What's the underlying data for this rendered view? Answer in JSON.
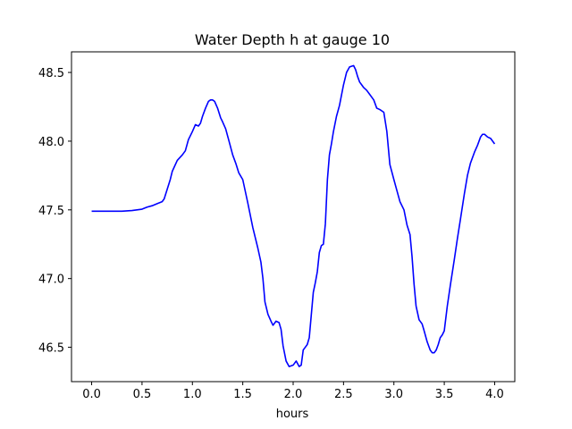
{
  "chart_data": {
    "type": "line",
    "title": "Water Depth h at gauge 10",
    "xlabel": "hours",
    "ylabel": "",
    "xlim": [
      -0.2,
      4.2
    ],
    "ylim": [
      46.25,
      48.65
    ],
    "xticks": [
      0.0,
      0.5,
      1.0,
      1.5,
      2.0,
      2.5,
      3.0,
      3.5,
      4.0
    ],
    "xtick_labels": [
      "0.0",
      "0.5",
      "1.0",
      "1.5",
      "2.0",
      "2.5",
      "3.0",
      "3.5",
      "4.0"
    ],
    "yticks": [
      46.5,
      47.0,
      47.5,
      48.0,
      48.5
    ],
    "ytick_labels": [
      "46.5",
      "47.0",
      "47.5",
      "48.0",
      "48.5"
    ],
    "grid": false,
    "series": [
      {
        "color": "#0000ff",
        "x": [
          0.0,
          0.1,
          0.2,
          0.3,
          0.4,
          0.5,
          0.55,
          0.6,
          0.65,
          0.7,
          0.72,
          0.75,
          0.78,
          0.8,
          0.85,
          0.9,
          0.93,
          0.96,
          1.0,
          1.03,
          1.06,
          1.08,
          1.1,
          1.13,
          1.16,
          1.18,
          1.2,
          1.22,
          1.25,
          1.28,
          1.3,
          1.33,
          1.36,
          1.4,
          1.43,
          1.46,
          1.5,
          1.55,
          1.6,
          1.65,
          1.68,
          1.7,
          1.72,
          1.75,
          1.78,
          1.8,
          1.83,
          1.86,
          1.88,
          1.9,
          1.93,
          1.96,
          2.0,
          2.03,
          2.06,
          2.08,
          2.1,
          2.12,
          2.14,
          2.16,
          2.2,
          2.22,
          2.24,
          2.26,
          2.28,
          2.3,
          2.32,
          2.34,
          2.36,
          2.38,
          2.4,
          2.43,
          2.46,
          2.5,
          2.53,
          2.56,
          2.6,
          2.62,
          2.64,
          2.66,
          2.68,
          2.7,
          2.73,
          2.76,
          2.8,
          2.83,
          2.86,
          2.9,
          2.93,
          2.96,
          3.0,
          3.03,
          3.06,
          3.1,
          3.13,
          3.16,
          3.18,
          3.2,
          3.22,
          3.25,
          3.28,
          3.3,
          3.33,
          3.36,
          3.38,
          3.4,
          3.42,
          3.44,
          3.46,
          3.48,
          3.5,
          3.53,
          3.56,
          3.6,
          3.63,
          3.66,
          3.7,
          3.73,
          3.76,
          3.8,
          3.83,
          3.86,
          3.88,
          3.9,
          3.93,
          3.96,
          4.0
        ],
        "y": [
          47.49,
          47.49,
          47.49,
          47.49,
          47.495,
          47.505,
          47.52,
          47.53,
          47.545,
          47.56,
          47.58,
          47.65,
          47.72,
          47.78,
          47.86,
          47.9,
          47.93,
          48.01,
          48.07,
          48.12,
          48.11,
          48.13,
          48.18,
          48.24,
          48.29,
          48.3,
          48.3,
          48.29,
          48.24,
          48.17,
          48.14,
          48.09,
          48.01,
          47.9,
          47.84,
          47.77,
          47.72,
          47.55,
          47.37,
          47.22,
          47.12,
          47.0,
          46.83,
          46.74,
          46.69,
          46.66,
          46.69,
          46.68,
          46.63,
          46.51,
          46.4,
          46.36,
          46.37,
          46.4,
          46.36,
          46.37,
          46.48,
          46.5,
          46.52,
          46.57,
          46.9,
          46.97,
          47.05,
          47.19,
          47.24,
          47.25,
          47.4,
          47.72,
          47.9,
          47.98,
          48.07,
          48.18,
          48.26,
          48.41,
          48.5,
          48.54,
          48.55,
          48.52,
          48.47,
          48.43,
          48.41,
          48.39,
          48.37,
          48.34,
          48.3,
          48.24,
          48.23,
          48.21,
          48.07,
          47.83,
          47.72,
          47.64,
          47.56,
          47.5,
          47.39,
          47.32,
          47.16,
          46.96,
          46.8,
          46.7,
          46.67,
          46.62,
          46.54,
          46.48,
          46.46,
          46.46,
          46.48,
          46.52,
          46.57,
          46.59,
          46.62,
          46.8,
          46.95,
          47.14,
          47.29,
          47.43,
          47.62,
          47.75,
          47.84,
          47.92,
          47.97,
          48.03,
          48.05,
          48.05,
          48.03,
          48.02,
          47.98
        ]
      }
    ]
  }
}
